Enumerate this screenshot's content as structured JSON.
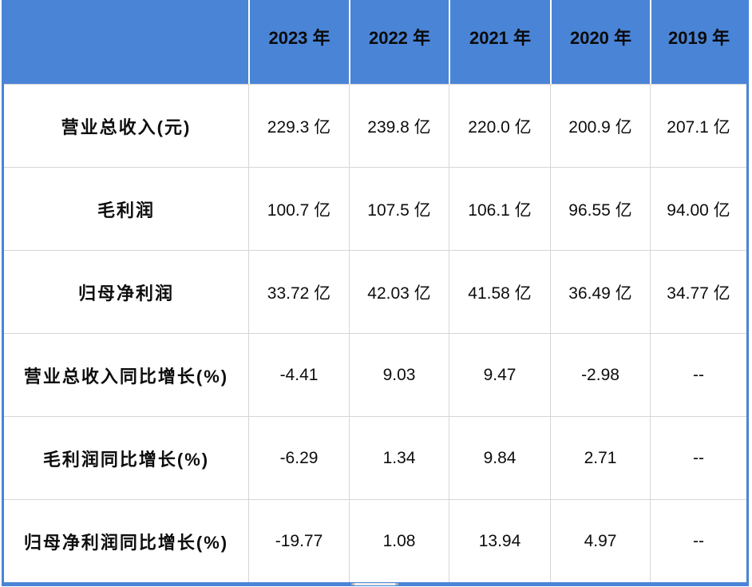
{
  "colors": {
    "header_bg": "#4a84d6",
    "outer_border": "#4a84d6",
    "gridline": "#d6d6d6",
    "header_separator": "#ffffff",
    "text": "#0d0d0d"
  },
  "table": {
    "corner_label": "",
    "columns": [
      "2023 年",
      "2022 年",
      "2021 年",
      "2020 年",
      "2019 年"
    ],
    "rows": [
      {
        "label": "营业总收入(元)",
        "values": [
          "229.3 亿",
          "239.8 亿",
          "220.0 亿",
          "200.9 亿",
          "207.1 亿"
        ]
      },
      {
        "label": "毛利润",
        "values": [
          "100.7 亿",
          "107.5 亿",
          "106.1 亿",
          "96.55 亿",
          "94.00 亿"
        ]
      },
      {
        "label": "归母净利润",
        "values": [
          "33.72 亿",
          "42.03 亿",
          "41.58 亿",
          "36.49 亿",
          "34.77 亿"
        ]
      },
      {
        "label": "营业总收入同比增长(%)",
        "values": [
          "-4.41",
          "9.03",
          "9.47",
          "-2.98",
          "--"
        ]
      },
      {
        "label": "毛利润同比增长(%)",
        "values": [
          "-6.29",
          "1.34",
          "9.84",
          "2.71",
          "--"
        ]
      },
      {
        "label": "归母净利润同比增长(%)",
        "values": [
          "-19.77",
          "1.08",
          "13.94",
          "4.97",
          "--"
        ]
      }
    ]
  },
  "chart_data": {
    "type": "table",
    "title": "",
    "categories": [
      "2023",
      "2022",
      "2021",
      "2020",
      "2019"
    ],
    "series": [
      {
        "name": "营业总收入(元)",
        "unit": "亿",
        "values": [
          229.3,
          239.8,
          220.0,
          200.9,
          207.1
        ]
      },
      {
        "name": "毛利润",
        "unit": "亿",
        "values": [
          100.7,
          107.5,
          106.1,
          96.55,
          94.0
        ]
      },
      {
        "name": "归母净利润",
        "unit": "亿",
        "values": [
          33.72,
          42.03,
          41.58,
          36.49,
          34.77
        ]
      },
      {
        "name": "营业总收入同比增长(%)",
        "unit": "%",
        "values": [
          -4.41,
          9.03,
          9.47,
          -2.98,
          null
        ]
      },
      {
        "name": "毛利润同比增长(%)",
        "unit": "%",
        "values": [
          -6.29,
          1.34,
          9.84,
          2.71,
          null
        ]
      },
      {
        "name": "归母净利润同比增长(%)",
        "unit": "%",
        "values": [
          -19.77,
          1.08,
          13.94,
          4.97,
          null
        ]
      }
    ],
    "missing_value_display": "--",
    "layout": {
      "header_position": "top",
      "grid": true
    }
  }
}
